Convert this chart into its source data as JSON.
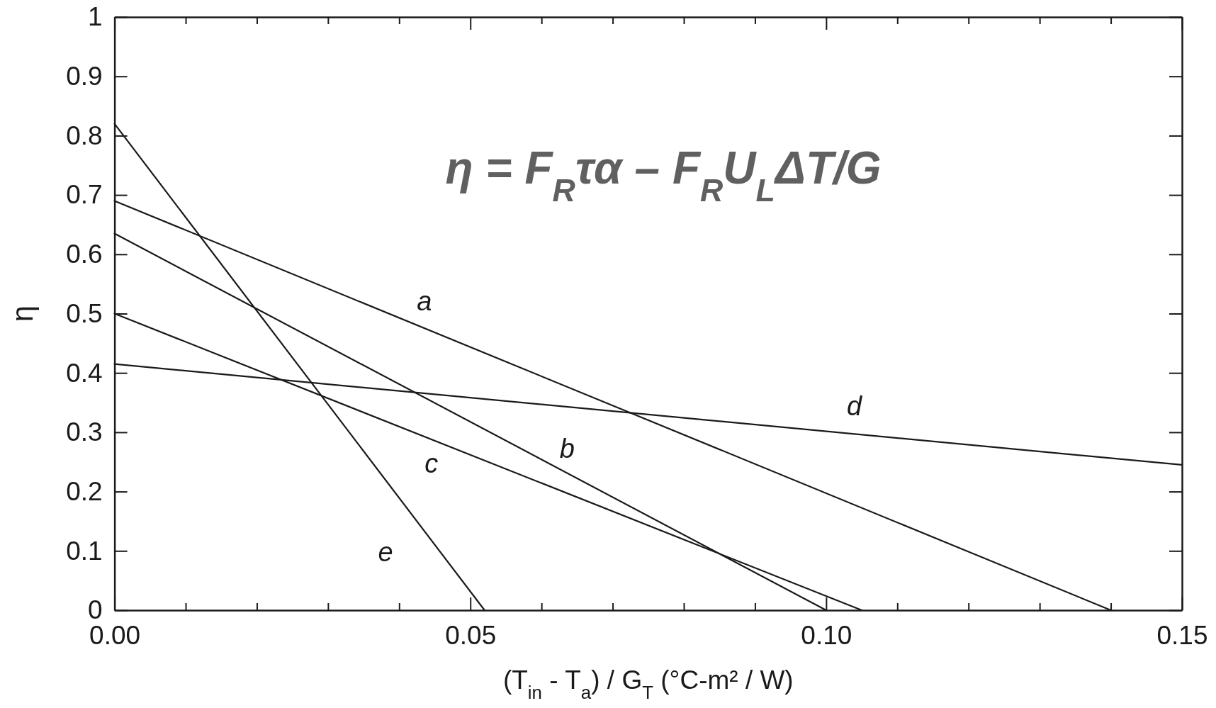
{
  "chart_data": {
    "type": "line",
    "xlabel": "(T$_{in}$ - T$_{a}$) / G$_{T}$ (°C-m² / W)",
    "ylabel": "η",
    "annotations": [
      "η = F$_{R}$τα – F$_{R}$U$_{L}$ΔT/G"
    ],
    "xlim": [
      0,
      0.15
    ],
    "ylim": [
      0,
      1
    ],
    "xticks": [
      {
        "value": 0,
        "label": "0.00"
      },
      {
        "value": 0.01,
        "label": null
      },
      {
        "value": 0.02,
        "label": null
      },
      {
        "value": 0.03,
        "label": null
      },
      {
        "value": 0.04,
        "label": null
      },
      {
        "value": 0.05,
        "label": "0.05"
      },
      {
        "value": 0.06,
        "label": null
      },
      {
        "value": 0.07,
        "label": null
      },
      {
        "value": 0.08,
        "label": null
      },
      {
        "value": 0.09,
        "label": null
      },
      {
        "value": 0.1,
        "label": "0.10"
      },
      {
        "value": 0.11,
        "label": null
      },
      {
        "value": 0.12,
        "label": null
      },
      {
        "value": 0.13,
        "label": null
      },
      {
        "value": 0.14,
        "label": null
      },
      {
        "value": 0.15,
        "label": "0.15"
      }
    ],
    "yticks": [
      0,
      0.1,
      0.2,
      0.3,
      0.4,
      0.5,
      0.6,
      0.7,
      0.8,
      0.9,
      1
    ],
    "marker": "none",
    "line_style": "solid",
    "series": [
      {
        "name": "a",
        "color": "#1a1a1a",
        "x": [
          0,
          0.14
        ],
        "values": [
          0.69,
          0
        ]
      },
      {
        "name": "b",
        "color": "#1a1a1a",
        "x": [
          0,
          0.1
        ],
        "values": [
          0.635,
          0
        ]
      },
      {
        "name": "c",
        "color": "#1a1a1a",
        "x": [
          0,
          0.105
        ],
        "values": [
          0.5,
          0
        ]
      },
      {
        "name": "d",
        "color": "#1a1a1a",
        "x": [
          0,
          0.15
        ],
        "values": [
          0.415,
          0.245
        ]
      },
      {
        "name": "e",
        "color": "#1a1a1a",
        "x": [
          0,
          0.052
        ],
        "values": [
          0.82,
          0
        ]
      }
    ]
  }
}
